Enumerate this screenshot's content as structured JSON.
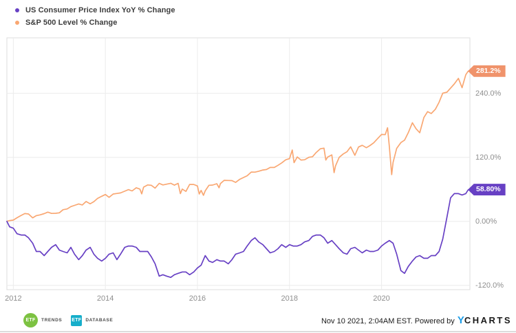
{
  "legend": {
    "items": [
      {
        "label": "US Consumer Price Index YoY % Change",
        "color": "#6740c4"
      },
      {
        "label": "S&P 500 Level % Change",
        "color": "#f9a772"
      }
    ]
  },
  "axes": {
    "y_ticks": [
      {
        "label": "240.0%",
        "value": 240
      },
      {
        "label": "120.0%",
        "value": 120
      },
      {
        "label": "0.00%",
        "value": 0
      },
      {
        "label": "-120.0%",
        "value": -120
      }
    ],
    "x_ticks": [
      {
        "label": "2012",
        "value": 2012
      },
      {
        "label": "2014",
        "value": 2014
      },
      {
        "label": "2016",
        "value": 2016
      },
      {
        "label": "2018",
        "value": 2018
      },
      {
        "label": "2020",
        "value": 2020
      }
    ]
  },
  "end_labels": [
    {
      "text": "281.2%",
      "value": 281.2,
      "color": "#f0936b"
    },
    {
      "text": "58.80%",
      "value": 58.8,
      "color": "#6740c4"
    }
  ],
  "footer": {
    "logos": [
      {
        "badge": "ETF",
        "name": "TRENDS",
        "badge_color": "#7dc242",
        "shape": "circle"
      },
      {
        "badge": "ETF",
        "name": "DATABASE",
        "badge_color": "#16aeca",
        "shape": "square"
      }
    ],
    "timestamp": "Nov 10 2021, 2:04AM EST. Powered by",
    "brand_y": "Y",
    "brand_rest": "CHARTS"
  },
  "chart_data": {
    "type": "line",
    "title": "",
    "xlabel": "",
    "ylabel": "",
    "grid": true,
    "legend_position": "top-left",
    "x_axis": {
      "min": 2011.86,
      "max": 2021.92
    },
    "y_axis": {
      "min": -128,
      "max": 344,
      "tick_values": [
        240,
        120,
        0,
        -120
      ]
    },
    "series": [
      {
        "name": "S&P 500 Level % Change",
        "color": "#f9a772",
        "end_label": "281.2%",
        "points": [
          [
            2011.86,
            0
          ],
          [
            2011.92,
            1.5
          ],
          [
            2012.0,
            2.4
          ],
          [
            2012.08,
            6.8
          ],
          [
            2012.17,
            11.1
          ],
          [
            2012.25,
            14.6
          ],
          [
            2012.33,
            13.8
          ],
          [
            2012.42,
            6.6
          ],
          [
            2012.5,
            10.8
          ],
          [
            2012.58,
            12.2
          ],
          [
            2012.67,
            14.5
          ],
          [
            2012.75,
            17.3
          ],
          [
            2012.83,
            14.9
          ],
          [
            2012.92,
            15.2
          ],
          [
            2013.0,
            16.0
          ],
          [
            2013.08,
            21.9
          ],
          [
            2013.17,
            23.3
          ],
          [
            2013.25,
            27.7
          ],
          [
            2013.33,
            30.0
          ],
          [
            2013.42,
            32.7
          ],
          [
            2013.5,
            30.7
          ],
          [
            2013.58,
            37.2
          ],
          [
            2013.67,
            32.9
          ],
          [
            2013.75,
            36.9
          ],
          [
            2013.83,
            43.0
          ],
          [
            2013.92,
            47.0
          ],
          [
            2014.0,
            50.4
          ],
          [
            2014.08,
            45.1
          ],
          [
            2014.17,
            51.3
          ],
          [
            2014.25,
            52.3
          ],
          [
            2014.33,
            53.3
          ],
          [
            2014.42,
            56.6
          ],
          [
            2014.5,
            59.5
          ],
          [
            2014.58,
            57.1
          ],
          [
            2014.67,
            63.0
          ],
          [
            2014.75,
            60.5
          ],
          [
            2014.79,
            51.5
          ],
          [
            2014.83,
            64.2
          ],
          [
            2014.92,
            68.3
          ],
          [
            2015.0,
            67.5
          ],
          [
            2015.08,
            62.3
          ],
          [
            2015.17,
            71.3
          ],
          [
            2015.25,
            68.3
          ],
          [
            2015.33,
            69.7
          ],
          [
            2015.42,
            71.4
          ],
          [
            2015.5,
            67.9
          ],
          [
            2015.58,
            71.2
          ],
          [
            2015.63,
            52.0
          ],
          [
            2015.67,
            60.5
          ],
          [
            2015.75,
            56.2
          ],
          [
            2015.83,
            69.2
          ],
          [
            2015.92,
            69.2
          ],
          [
            2016.0,
            66.3
          ],
          [
            2016.04,
            51.3
          ],
          [
            2016.08,
            57.9
          ],
          [
            2016.13,
            48.8
          ],
          [
            2016.17,
            57.2
          ],
          [
            2016.25,
            67.6
          ],
          [
            2016.33,
            68.0
          ],
          [
            2016.42,
            70.6
          ],
          [
            2016.47,
            63.0
          ],
          [
            2016.5,
            70.8
          ],
          [
            2016.58,
            76.9
          ],
          [
            2016.67,
            76.6
          ],
          [
            2016.75,
            76.4
          ],
          [
            2016.83,
            73.0
          ],
          [
            2016.92,
            78.9
          ],
          [
            2017.0,
            82.2
          ],
          [
            2017.08,
            85.4
          ],
          [
            2017.17,
            92.4
          ],
          [
            2017.25,
            92.3
          ],
          [
            2017.33,
            94.0
          ],
          [
            2017.42,
            96.3
          ],
          [
            2017.5,
            97.2
          ],
          [
            2017.58,
            101.0
          ],
          [
            2017.67,
            101.1
          ],
          [
            2017.75,
            105.0
          ],
          [
            2017.83,
            109.5
          ],
          [
            2017.92,
            115.5
          ],
          [
            2018.0,
            117.6
          ],
          [
            2018.06,
            133.8
          ],
          [
            2018.1,
            110.0
          ],
          [
            2018.17,
            120.8
          ],
          [
            2018.25,
            114.9
          ],
          [
            2018.33,
            115.5
          ],
          [
            2018.42,
            120.1
          ],
          [
            2018.5,
            121.2
          ],
          [
            2018.58,
            129.1
          ],
          [
            2018.67,
            136.1
          ],
          [
            2018.75,
            137.1
          ],
          [
            2018.79,
            115.0
          ],
          [
            2018.83,
            120.7
          ],
          [
            2018.92,
            124.6
          ],
          [
            2018.97,
            91.3
          ],
          [
            2019.0,
            104.0
          ],
          [
            2019.08,
            120.0
          ],
          [
            2019.17,
            126.5
          ],
          [
            2019.25,
            130.6
          ],
          [
            2019.33,
            139.7
          ],
          [
            2019.42,
            123.9
          ],
          [
            2019.5,
            139.4
          ],
          [
            2019.58,
            142.5
          ],
          [
            2019.67,
            138.1
          ],
          [
            2019.75,
            142.2
          ],
          [
            2019.83,
            147.2
          ],
          [
            2019.92,
            155.6
          ],
          [
            2020.0,
            162.9
          ],
          [
            2020.08,
            162.5
          ],
          [
            2020.13,
            175.5
          ],
          [
            2020.17,
            140.4
          ],
          [
            2020.22,
            87.6
          ],
          [
            2020.25,
            110.3
          ],
          [
            2020.33,
            136.9
          ],
          [
            2020.42,
            147.7
          ],
          [
            2020.5,
            152.2
          ],
          [
            2020.58,
            166.2
          ],
          [
            2020.67,
            184.8
          ],
          [
            2020.75,
            173.6
          ],
          [
            2020.83,
            166.1
          ],
          [
            2020.92,
            194.7
          ],
          [
            2021.0,
            205.6
          ],
          [
            2021.08,
            202.2
          ],
          [
            2021.17,
            210.1
          ],
          [
            2021.25,
            223.3
          ],
          [
            2021.33,
            240.2
          ],
          [
            2021.42,
            242.1
          ],
          [
            2021.5,
            249.7
          ],
          [
            2021.58,
            257.6
          ],
          [
            2021.67,
            268.0
          ],
          [
            2021.75,
            250.5
          ],
          [
            2021.83,
            274.7
          ],
          [
            2021.88,
            281.2
          ]
        ]
      },
      {
        "name": "US Consumer Price Index YoY % Change",
        "color": "#6740c4",
        "end_label": "58.80%",
        "points": [
          [
            2011.86,
            0
          ],
          [
            2011.92,
            -10.3
          ],
          [
            2012.0,
            -12.8
          ],
          [
            2012.08,
            -23.1
          ],
          [
            2012.17,
            -25.6
          ],
          [
            2012.25,
            -25.6
          ],
          [
            2012.33,
            -30.8
          ],
          [
            2012.42,
            -41.0
          ],
          [
            2012.5,
            -56.4
          ],
          [
            2012.58,
            -56.4
          ],
          [
            2012.67,
            -64.1
          ],
          [
            2012.75,
            -56.4
          ],
          [
            2012.83,
            -48.7
          ],
          [
            2012.92,
            -43.6
          ],
          [
            2013.0,
            -53.8
          ],
          [
            2013.08,
            -56.4
          ],
          [
            2013.17,
            -59.0
          ],
          [
            2013.25,
            -48.7
          ],
          [
            2013.33,
            -61.5
          ],
          [
            2013.42,
            -71.8
          ],
          [
            2013.5,
            -64.1
          ],
          [
            2013.58,
            -53.8
          ],
          [
            2013.67,
            -48.7
          ],
          [
            2013.75,
            -61.5
          ],
          [
            2013.83,
            -69.2
          ],
          [
            2013.92,
            -74.4
          ],
          [
            2014.0,
            -69.2
          ],
          [
            2014.08,
            -61.5
          ],
          [
            2014.17,
            -59.0
          ],
          [
            2014.25,
            -71.8
          ],
          [
            2014.33,
            -61.5
          ],
          [
            2014.42,
            -48.7
          ],
          [
            2014.5,
            -46.2
          ],
          [
            2014.58,
            -46.2
          ],
          [
            2014.67,
            -48.7
          ],
          [
            2014.75,
            -56.4
          ],
          [
            2014.83,
            -56.4
          ],
          [
            2014.92,
            -56.4
          ],
          [
            2015.0,
            -66.7
          ],
          [
            2015.08,
            -79.5
          ],
          [
            2015.17,
            -102.6
          ],
          [
            2015.25,
            -100.0
          ],
          [
            2015.33,
            -102.6
          ],
          [
            2015.42,
            -105.1
          ],
          [
            2015.5,
            -100.0
          ],
          [
            2015.58,
            -97.4
          ],
          [
            2015.67,
            -94.9
          ],
          [
            2015.75,
            -94.9
          ],
          [
            2015.83,
            -100.0
          ],
          [
            2015.92,
            -94.9
          ],
          [
            2016.0,
            -87.2
          ],
          [
            2016.08,
            -82.1
          ],
          [
            2016.17,
            -64.1
          ],
          [
            2016.25,
            -74.4
          ],
          [
            2016.33,
            -76.9
          ],
          [
            2016.42,
            -71.8
          ],
          [
            2016.5,
            -74.4
          ],
          [
            2016.58,
            -74.4
          ],
          [
            2016.67,
            -79.5
          ],
          [
            2016.75,
            -71.8
          ],
          [
            2016.83,
            -61.5
          ],
          [
            2016.92,
            -59.0
          ],
          [
            2017.0,
            -56.4
          ],
          [
            2017.08,
            -46.2
          ],
          [
            2017.17,
            -35.9
          ],
          [
            2017.25,
            -30.8
          ],
          [
            2017.33,
            -38.5
          ],
          [
            2017.42,
            -43.6
          ],
          [
            2017.5,
            -51.3
          ],
          [
            2017.58,
            -59.0
          ],
          [
            2017.67,
            -56.4
          ],
          [
            2017.75,
            -51.3
          ],
          [
            2017.83,
            -43.6
          ],
          [
            2017.92,
            -48.7
          ],
          [
            2018.0,
            -43.6
          ],
          [
            2018.08,
            -46.2
          ],
          [
            2018.17,
            -46.2
          ],
          [
            2018.25,
            -43.6
          ],
          [
            2018.33,
            -38.5
          ],
          [
            2018.42,
            -35.9
          ],
          [
            2018.5,
            -28.2
          ],
          [
            2018.58,
            -25.6
          ],
          [
            2018.67,
            -25.6
          ],
          [
            2018.75,
            -30.8
          ],
          [
            2018.83,
            -41.0
          ],
          [
            2018.92,
            -35.9
          ],
          [
            2019.0,
            -43.6
          ],
          [
            2019.08,
            -51.3
          ],
          [
            2019.17,
            -59.0
          ],
          [
            2019.25,
            -61.5
          ],
          [
            2019.33,
            -51.3
          ],
          [
            2019.42,
            -48.7
          ],
          [
            2019.5,
            -53.8
          ],
          [
            2019.58,
            -59.0
          ],
          [
            2019.67,
            -53.8
          ],
          [
            2019.75,
            -56.4
          ],
          [
            2019.83,
            -56.4
          ],
          [
            2019.92,
            -53.8
          ],
          [
            2020.0,
            -46.2
          ],
          [
            2020.08,
            -41.0
          ],
          [
            2020.17,
            -35.9
          ],
          [
            2020.25,
            -41.0
          ],
          [
            2020.33,
            -61.5
          ],
          [
            2020.42,
            -92.3
          ],
          [
            2020.5,
            -97.4
          ],
          [
            2020.58,
            -84.6
          ],
          [
            2020.67,
            -74.4
          ],
          [
            2020.75,
            -66.7
          ],
          [
            2020.83,
            -64.1
          ],
          [
            2020.92,
            -69.2
          ],
          [
            2021.0,
            -69.2
          ],
          [
            2021.08,
            -64.1
          ],
          [
            2021.17,
            -64.1
          ],
          [
            2021.25,
            -56.4
          ],
          [
            2021.33,
            -33.3
          ],
          [
            2021.42,
            7.7
          ],
          [
            2021.5,
            44.0
          ],
          [
            2021.58,
            52.0
          ],
          [
            2021.67,
            52.0
          ],
          [
            2021.75,
            49.5
          ],
          [
            2021.83,
            52.0
          ],
          [
            2021.88,
            58.8
          ]
        ]
      }
    ]
  }
}
